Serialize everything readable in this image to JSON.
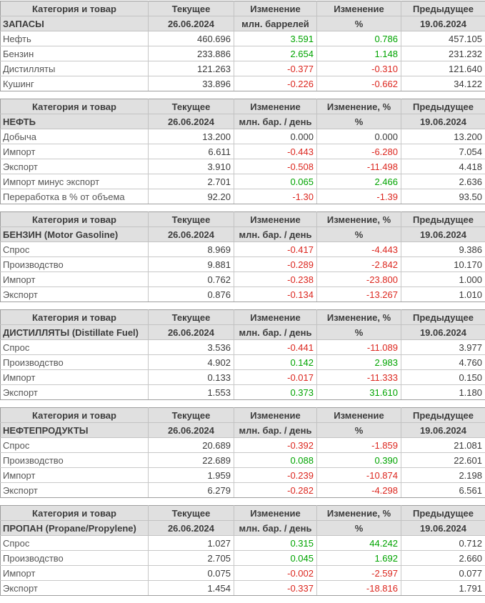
{
  "colors": {
    "positive": "#00a400",
    "negative": "#dc271f",
    "header_bg": "#e0e0e0",
    "grid_line": "#c8c8c8"
  },
  "tables": [
    {
      "id": "zapasy",
      "header": [
        "Категория и товар",
        "Текущее",
        "Изменение",
        "Изменение",
        "Предыдущее"
      ],
      "subheader": [
        "ЗАПАСЫ",
        "26.06.2024",
        "млн. баррелей",
        "%",
        "19.06.2024"
      ],
      "rows": [
        {
          "label": "Нефть",
          "current": "460.696",
          "change": "3.591",
          "change_pct": "0.786",
          "previous": "457.105",
          "trend": "up"
        },
        {
          "label": "Бензин",
          "current": "233.886",
          "change": "2.654",
          "change_pct": "1.148",
          "previous": "231.232",
          "trend": "up"
        },
        {
          "label": "Дистилляты",
          "current": "121.263",
          "change": "-0.377",
          "change_pct": "-0.310",
          "previous": "121.640",
          "trend": "down"
        },
        {
          "label": "Кушинг",
          "current": "33.896",
          "change": "-0.226",
          "change_pct": "-0.662",
          "previous": "34.122",
          "trend": "down"
        }
      ]
    },
    {
      "id": "neft",
      "header": [
        "Категория и товар",
        "Текущее",
        "Изменение",
        "Изменение, %",
        "Предыдущее"
      ],
      "subheader": [
        "НЕФТЬ",
        "26.06.2024",
        "млн. бар. / день",
        "%",
        "19.06.2024"
      ],
      "rows": [
        {
          "label": "Добыча",
          "current": "13.200",
          "change": "0.000",
          "change_pct": "0.000",
          "previous": "13.200",
          "trend": "flat"
        },
        {
          "label": "Импорт",
          "current": "6.611",
          "change": "-0.443",
          "change_pct": "-6.280",
          "previous": "7.054",
          "trend": "down"
        },
        {
          "label": "Экспорт",
          "current": "3.910",
          "change": "-0.508",
          "change_pct": "-11.498",
          "previous": "4.418",
          "trend": "down"
        },
        {
          "label": "Импорт минус экспорт",
          "current": "2.701",
          "change": "0.065",
          "change_pct": "2.466",
          "previous": "2.636",
          "trend": "up"
        },
        {
          "label": "Переработка в % от объема",
          "current": "92.20",
          "change": "-1.30",
          "change_pct": "-1.39",
          "previous": "93.50",
          "trend": "down"
        }
      ]
    },
    {
      "id": "benzin",
      "header": [
        "Категория и товар",
        "Текущее",
        "Изменение",
        "Изменение, %",
        "Предыдущее"
      ],
      "subheader": [
        "БЕНЗИН (Motor Gasoline)",
        "26.06.2024",
        "млн. бар. / день",
        "%",
        "19.06.2024"
      ],
      "rows": [
        {
          "label": "Спрос",
          "current": "8.969",
          "change": "-0.417",
          "change_pct": "-4.443",
          "previous": "9.386",
          "trend": "down"
        },
        {
          "label": "Производство",
          "current": "9.881",
          "change": "-0.289",
          "change_pct": "-2.842",
          "previous": "10.170",
          "trend": "down"
        },
        {
          "label": "Импорт",
          "current": "0.762",
          "change": "-0.238",
          "change_pct": "-23.800",
          "previous": "1.000",
          "trend": "down"
        },
        {
          "label": "Экспорт",
          "current": "0.876",
          "change": "-0.134",
          "change_pct": "-13.267",
          "previous": "1.010",
          "trend": "down"
        }
      ]
    },
    {
      "id": "distillyaty",
      "header": [
        "Категория и товар",
        "Текущее",
        "Изменение",
        "Изменение, %",
        "Предыдущее"
      ],
      "subheader": [
        "ДИСТИЛЛЯТЫ (Distillate Fuel)",
        "26.06.2024",
        "млн. бар. / день",
        "%",
        "19.06.2024"
      ],
      "rows": [
        {
          "label": "Спрос",
          "current": "3.536",
          "change": "-0.441",
          "change_pct": "-11.089",
          "previous": "3.977",
          "trend": "down"
        },
        {
          "label": "Производство",
          "current": "4.902",
          "change": "0.142",
          "change_pct": "2.983",
          "previous": "4.760",
          "trend": "up"
        },
        {
          "label": "Импорт",
          "current": "0.133",
          "change": "-0.017",
          "change_pct": "-11.333",
          "previous": "0.150",
          "trend": "down"
        },
        {
          "label": "Экспорт",
          "current": "1.553",
          "change": "0.373",
          "change_pct": "31.610",
          "previous": "1.180",
          "trend": "up"
        }
      ]
    },
    {
      "id": "nefteprodukty",
      "header": [
        "Категория и товар",
        "Текущее",
        "Изменение",
        "Изменение",
        "Предыдущее"
      ],
      "subheader": [
        "НЕФТЕПРОДУКТЫ",
        "26.06.2024",
        "млн. бар. / день",
        "%",
        "19.06.2024"
      ],
      "rows": [
        {
          "label": "Спрос",
          "current": "20.689",
          "change": "-0.392",
          "change_pct": "-1.859",
          "previous": "21.081",
          "trend": "down"
        },
        {
          "label": "Производство",
          "current": "22.689",
          "change": "0.088",
          "change_pct": "0.390",
          "previous": "22.601",
          "trend": "up"
        },
        {
          "label": "Импорт",
          "current": "1.959",
          "change": "-0.239",
          "change_pct": "-10.874",
          "previous": "2.198",
          "trend": "down"
        },
        {
          "label": "Экспорт",
          "current": "6.279",
          "change": "-0.282",
          "change_pct": "-4.298",
          "previous": "6.561",
          "trend": "down"
        }
      ]
    },
    {
      "id": "propan",
      "header": [
        "Категория и товар",
        "Текущее",
        "Изменение",
        "Изменение, %",
        "Предыдущее"
      ],
      "subheader": [
        "ПРОПАН (Propane/Propylene)",
        "26.06.2024",
        "млн. бар. / день",
        "%",
        "19.06.2024"
      ],
      "rows": [
        {
          "label": "Спрос",
          "current": "1.027",
          "change": "0.315",
          "change_pct": "44.242",
          "previous": "0.712",
          "trend": "up"
        },
        {
          "label": "Производство",
          "current": "2.705",
          "change": "0.045",
          "change_pct": "1.692",
          "previous": "2.660",
          "trend": "up"
        },
        {
          "label": "Импорт",
          "current": "0.075",
          "change": "-0.002",
          "change_pct": "-2.597",
          "previous": "0.077",
          "trend": "down"
        },
        {
          "label": "Экспорт",
          "current": "1.454",
          "change": "-0.337",
          "change_pct": "-18.816",
          "previous": "1.791",
          "trend": "down"
        }
      ]
    }
  ]
}
